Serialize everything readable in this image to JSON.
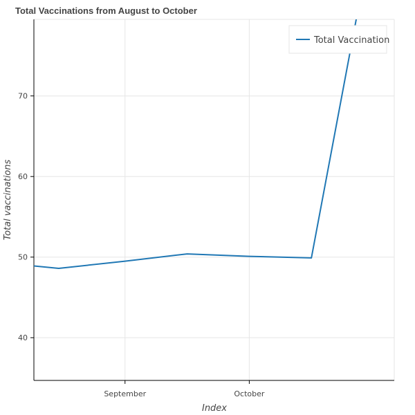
{
  "chart_data": {
    "type": "line",
    "title": "Total Vaccinations from August to October",
    "xlabel": "Index",
    "ylabel": "Total vaccinations",
    "x_axis": {
      "type": "datetime",
      "range": [
        "2021-08-10",
        "2021-11-05"
      ],
      "tick_labels": [
        {
          "label": "September",
          "date": "2021-09-01"
        },
        {
          "label": "October",
          "date": "2021-10-01"
        }
      ]
    },
    "ylim": [
      34.7,
      79.5
    ],
    "y_ticks": [
      40,
      50,
      60,
      70
    ],
    "grid": true,
    "legend": {
      "position": "top-right",
      "entries": [
        "Total Vaccination"
      ]
    },
    "series": [
      {
        "name": "Total Vaccination",
        "color": "#1f77b4",
        "points": [
          {
            "x": "2021-08-10",
            "y": 48.9
          },
          {
            "x": "2021-08-16",
            "y": 48.6
          },
          {
            "x": "2021-09-01",
            "y": 49.5
          },
          {
            "x": "2021-09-16",
            "y": 50.4
          },
          {
            "x": "2021-10-01",
            "y": 50.1
          },
          {
            "x": "2021-10-16",
            "y": 49.9
          },
          {
            "x": "2021-10-27",
            "y": 80.0
          }
        ]
      }
    ]
  }
}
